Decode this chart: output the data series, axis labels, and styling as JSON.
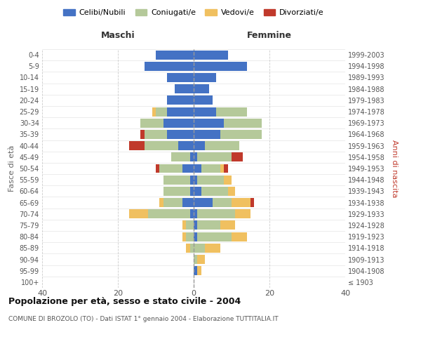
{
  "age_groups": [
    "100+",
    "95-99",
    "90-94",
    "85-89",
    "80-84",
    "75-79",
    "70-74",
    "65-69",
    "60-64",
    "55-59",
    "50-54",
    "45-49",
    "40-44",
    "35-39",
    "30-34",
    "25-29",
    "20-24",
    "15-19",
    "10-14",
    "5-9",
    "0-4"
  ],
  "birth_years": [
    "≤ 1903",
    "1904-1908",
    "1909-1913",
    "1914-1918",
    "1919-1923",
    "1924-1928",
    "1929-1933",
    "1934-1938",
    "1939-1943",
    "1944-1948",
    "1949-1953",
    "1954-1958",
    "1959-1963",
    "1964-1968",
    "1969-1973",
    "1974-1978",
    "1979-1983",
    "1984-1988",
    "1989-1993",
    "1994-1998",
    "1999-2003"
  ],
  "maschi_celibi": [
    0,
    0,
    0,
    0,
    0,
    0,
    1,
    3,
    1,
    1,
    3,
    1,
    4,
    7,
    8,
    7,
    7,
    5,
    7,
    13,
    10
  ],
  "maschi_coniugati": [
    0,
    0,
    0,
    1,
    2,
    2,
    11,
    5,
    7,
    7,
    6,
    5,
    9,
    6,
    6,
    3,
    0,
    0,
    0,
    0,
    0
  ],
  "maschi_vedovi": [
    0,
    0,
    0,
    1,
    1,
    1,
    5,
    1,
    0,
    0,
    0,
    0,
    0,
    0,
    0,
    1,
    0,
    0,
    0,
    0,
    0
  ],
  "maschi_divorziati": [
    0,
    0,
    0,
    0,
    0,
    0,
    0,
    0,
    0,
    0,
    1,
    0,
    4,
    1,
    0,
    0,
    0,
    0,
    0,
    0,
    0
  ],
  "femmine_celibi": [
    0,
    1,
    0,
    0,
    1,
    1,
    1,
    5,
    2,
    1,
    2,
    1,
    3,
    7,
    8,
    6,
    5,
    4,
    6,
    14,
    9
  ],
  "femmine_coniugati": [
    0,
    0,
    1,
    3,
    9,
    6,
    10,
    5,
    7,
    7,
    5,
    9,
    9,
    11,
    10,
    8,
    0,
    0,
    0,
    0,
    0
  ],
  "femmine_vedovi": [
    0,
    1,
    2,
    4,
    4,
    4,
    4,
    5,
    2,
    2,
    1,
    0,
    0,
    0,
    0,
    0,
    0,
    0,
    0,
    0,
    0
  ],
  "femmine_divorziati": [
    0,
    0,
    0,
    0,
    0,
    0,
    0,
    1,
    0,
    0,
    1,
    3,
    0,
    0,
    0,
    0,
    0,
    0,
    0,
    0,
    0
  ],
  "color_celibi": "#4472c4",
  "color_coniugati": "#b5c99a",
  "color_vedovi": "#f0c060",
  "color_divorziati": "#c0392b",
  "title": "Popolazione per età, sesso e stato civile - 2004",
  "subtitle": "COMUNE DI BROZOLO (TO) - Dati ISTAT 1° gennaio 2004 - Elaborazione TUTTITALIA.IT",
  "xlabel_left": "Maschi",
  "xlabel_right": "Femmine",
  "ylabel_left": "Fasce di età",
  "ylabel_right": "Anni di nascita",
  "xlim": 40,
  "legend_labels": [
    "Celibi/Nubili",
    "Coniugati/e",
    "Vedovi/e",
    "Divorziati/e"
  ],
  "bg_color": "#ffffff",
  "grid_color": "#cccccc"
}
